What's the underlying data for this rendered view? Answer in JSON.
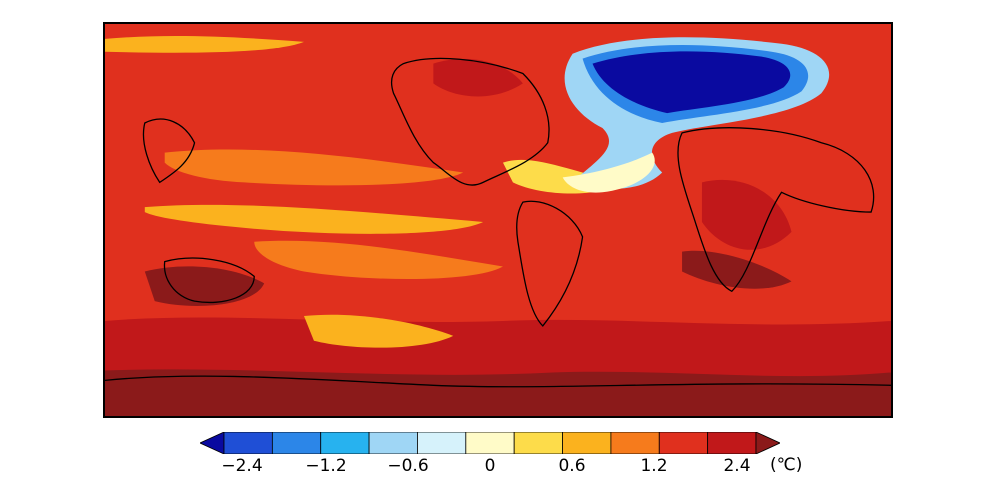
{
  "figure": {
    "description_type": "global surface temperature anomaly map",
    "colorbar": {
      "colors": [
        "#0a0aa0",
        "#1f4fd6",
        "#2c86e8",
        "#27b2ef",
        "#9fd6f5",
        "#d6f2fb",
        "#fffbc8",
        "#fddc4a",
        "#fbb21e",
        "#f67b1c",
        "#e0301e",
        "#c1181a",
        "#8b1a1a"
      ],
      "levels": [
        "−2.4",
        "−1.2",
        "−0.6",
        "0",
        "0.6",
        "1.2",
        "2.4"
      ],
      "unit": "(℃)"
    },
    "regions": {
      "north_atlantic_cold_patch": "dark-blue",
      "southern_ocean": "dark-red",
      "tropical_pacific": "orange"
    }
  }
}
